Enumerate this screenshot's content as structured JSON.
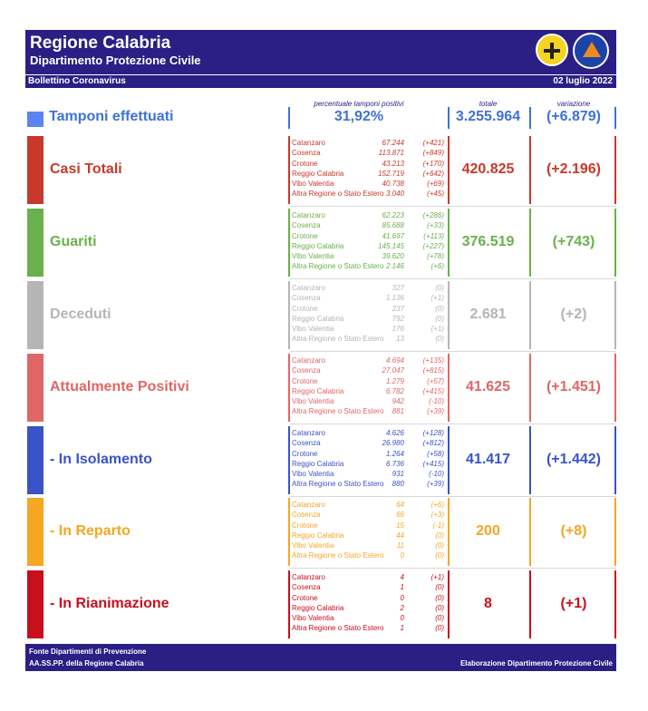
{
  "header": {
    "title": "Regione Calabria",
    "subtitle": "Dipartimento Protezione Civile",
    "bulletin": "Bollettino Coronavirus",
    "date": "02 luglio 2022"
  },
  "columns": {
    "positive_pct": "percentuale tamponi positivi",
    "total": "totale",
    "change": "variazione"
  },
  "tamponi": {
    "label": "Tamponi effettuati",
    "positive_pct": "31,92%",
    "total": "3.255.964",
    "change": "(+6.879)"
  },
  "provinces": [
    "Catanzaro",
    "Cosenza",
    "Crotone",
    "Reggio Calabria",
    "Vibo Valentia",
    "Altra Regione o Stato Estero"
  ],
  "rows": [
    {
      "label": "Casi Totali",
      "color": "#c8392b",
      "total": "420.825",
      "change": "(+2.196)",
      "values": [
        "67.244",
        "113.871",
        "43.213",
        "152.719",
        "40.738",
        "3.040"
      ],
      "deltas": [
        "(+421)",
        "(+849)",
        "(+170)",
        "(+642)",
        "(+69)",
        "(+45)"
      ]
    },
    {
      "label": "Guariti",
      "color": "#6ab04c",
      "total": "376.519",
      "change": "(+743)",
      "values": [
        "62.223",
        "85.688",
        "41.697",
        "145.145",
        "39.620",
        "2.146"
      ],
      "deltas": [
        "(+286)",
        "(+33)",
        "(+113)",
        "(+227)",
        "(+78)",
        "(+6)"
      ]
    },
    {
      "label": "Deceduti",
      "color": "#b5b5b5",
      "total": "2.681",
      "change": "(+2)",
      "values": [
        "327",
        "1.136",
        "237",
        "792",
        "176",
        "13"
      ],
      "deltas": [
        "(0)",
        "(+1)",
        "(0)",
        "(0)",
        "(+1)",
        "(0)"
      ]
    },
    {
      "label": "Attualmente Positivi",
      "color": "#e06666",
      "total": "41.625",
      "change": "(+1.451)",
      "values": [
        "4.694",
        "27.047",
        "1.279",
        "6.782",
        "942",
        "881"
      ],
      "deltas": [
        "(+135)",
        "(+815)",
        "(+57)",
        "(+415)",
        "(-10)",
        "(+39)"
      ]
    },
    {
      "label": "- In Isolamento",
      "color": "#3a53c7",
      "total": "41.417",
      "change": "(+1.442)",
      "values": [
        "4.626",
        "26.980",
        "1.264",
        "6.736",
        "931",
        "880"
      ],
      "deltas": [
        "(+128)",
        "(+812)",
        "(+58)",
        "(+415)",
        "(-10)",
        "(+39)"
      ]
    },
    {
      "label": "- In Reparto",
      "color": "#f5a623",
      "total": "200",
      "change": "(+8)",
      "values": [
        "64",
        "66",
        "15",
        "44",
        "11",
        "0"
      ],
      "deltas": [
        "(+6)",
        "(+3)",
        "(-1)",
        "(0)",
        "(0)",
        "(0)"
      ]
    },
    {
      "label": "- In Rianimazione",
      "color": "#c80f1e",
      "total": "8",
      "change": "(+1)",
      "values": [
        "4",
        "1",
        "0",
        "2",
        "0",
        "1"
      ],
      "deltas": [
        "(+1)",
        "(0)",
        "(0)",
        "(0)",
        "(0)",
        "(0)"
      ]
    }
  ],
  "footer": {
    "source_line1": "Fonte Dipartimenti di Prevenzione",
    "source_line2": "AA.SS.PP.  della Regione Calabria",
    "credit": "Elaborazione Dipartimento Protezione Civile"
  },
  "icons": {
    "logo_left": "calabria-crest-icon",
    "logo_right": "protezione-civile-icon"
  }
}
